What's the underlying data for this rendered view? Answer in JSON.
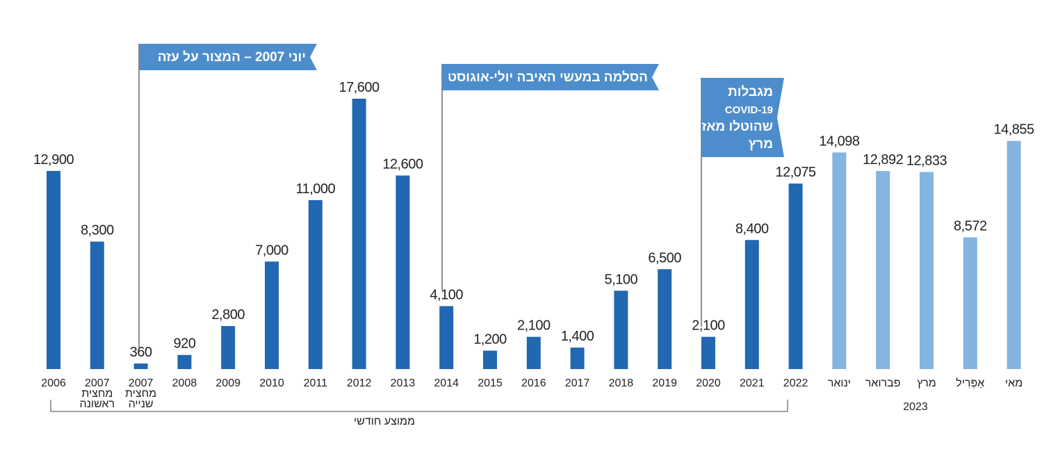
{
  "colors": {
    "dark_bar": "#2167b2",
    "light_bar": "#84b4e0",
    "flag": "#4d8dcb",
    "flag_text": "#ffffff",
    "line": "#444444"
  },
  "chart_data": {
    "type": "bar",
    "ylim": [
      0,
      17600
    ],
    "grid": false,
    "series": [
      {
        "category_lines": [
          "2006"
        ],
        "value": 12900,
        "label": "12,900",
        "shade": "dark"
      },
      {
        "category_lines": [
          "2007",
          "מחצית",
          "ראשונה"
        ],
        "value": 8300,
        "label": "8,300",
        "shade": "dark"
      },
      {
        "category_lines": [
          "2007",
          "מחצית",
          "שנייה"
        ],
        "value": 360,
        "label": "360",
        "shade": "dark"
      },
      {
        "category_lines": [
          "2008"
        ],
        "value": 920,
        "label": "920",
        "shade": "dark"
      },
      {
        "category_lines": [
          "2009"
        ],
        "value": 2800,
        "label": "2,800",
        "shade": "dark"
      },
      {
        "category_lines": [
          "2010"
        ],
        "value": 7000,
        "label": "7,000",
        "shade": "dark"
      },
      {
        "category_lines": [
          "2011"
        ],
        "value": 11000,
        "label": "11,000",
        "shade": "dark"
      },
      {
        "category_lines": [
          "2012"
        ],
        "value": 17600,
        "label": "17,600",
        "shade": "dark"
      },
      {
        "category_lines": [
          "2013"
        ],
        "value": 12600,
        "label": "12,600",
        "shade": "dark"
      },
      {
        "category_lines": [
          "2014"
        ],
        "value": 4100,
        "label": "4,100",
        "shade": "dark"
      },
      {
        "category_lines": [
          "2015"
        ],
        "value": 1200,
        "label": "1,200",
        "shade": "dark"
      },
      {
        "category_lines": [
          "2016"
        ],
        "value": 2100,
        "label": "2,100",
        "shade": "dark"
      },
      {
        "category_lines": [
          "2017"
        ],
        "value": 1400,
        "label": "1,400",
        "shade": "dark"
      },
      {
        "category_lines": [
          "2018"
        ],
        "value": 5100,
        "label": "5,100",
        "shade": "dark"
      },
      {
        "category_lines": [
          "2019"
        ],
        "value": 6500,
        "label": "6,500",
        "shade": "dark"
      },
      {
        "category_lines": [
          "2020"
        ],
        "value": 2100,
        "label": "2,100",
        "shade": "dark"
      },
      {
        "category_lines": [
          "2021"
        ],
        "value": 8400,
        "label": "8,400",
        "shade": "dark"
      },
      {
        "category_lines": [
          "2022"
        ],
        "value": 12075,
        "label": "12,075",
        "shade": "dark"
      },
      {
        "category_lines": [
          "ינואר"
        ],
        "value": 14098,
        "label": "14,098",
        "shade": "light"
      },
      {
        "category_lines": [
          "פברואר"
        ],
        "value": 12892,
        "label": "12,892",
        "shade": "light"
      },
      {
        "category_lines": [
          "מרץ"
        ],
        "value": 12833,
        "label": "12,833",
        "shade": "light"
      },
      {
        "category_lines": [
          "אַפְּרִיל"
        ],
        "value": 8572,
        "label": "8,572",
        "shade": "light"
      },
      {
        "category_lines": [
          "מאי"
        ],
        "value": 14855,
        "label": "14,855",
        "shade": "light"
      }
    ],
    "annotations": [
      {
        "lines": [
          "יוני 2007 – המצור על עזה"
        ],
        "at_category": 2
      },
      {
        "lines": [
          "הסלמה במעשי האיבה יולי-אוגוסט"
        ],
        "at_category": 9
      },
      {
        "lines": [
          "מגבלות",
          "COVID-19",
          "שהוטלו מאז",
          "מרץ"
        ],
        "at_category": 15
      }
    ],
    "bracket_label": "ממוצע חודשי",
    "group_label": "2023"
  }
}
